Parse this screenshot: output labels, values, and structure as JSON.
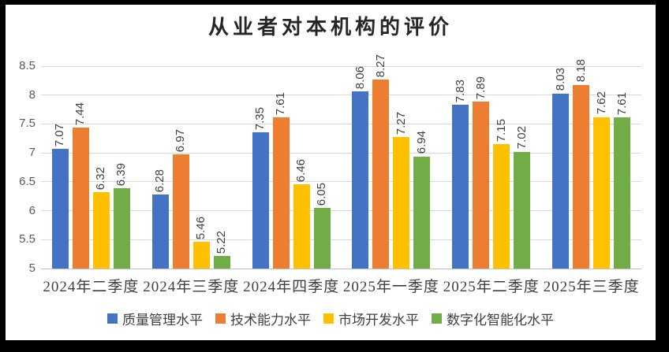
{
  "chart_data": {
    "type": "bar",
    "title": "从业者对本机构的评价",
    "categories": [
      "2024年二季度",
      "2024年三季度",
      "2024年四季度",
      "2025年一季度",
      "2025年二季度",
      "2025年三季度"
    ],
    "series": [
      {
        "name": "质量管理水平",
        "color": "#4472C4",
        "values": [
          7.07,
          6.28,
          7.35,
          8.06,
          7.83,
          8.03
        ]
      },
      {
        "name": "技术能力水平",
        "color": "#ED7D31",
        "values": [
          7.44,
          6.97,
          7.61,
          8.27,
          7.89,
          8.18
        ]
      },
      {
        "name": "市场开发水平",
        "color": "#FFC000",
        "values": [
          6.32,
          5.46,
          6.46,
          7.27,
          7.15,
          7.62
        ]
      },
      {
        "name": "数字化智能化水平",
        "color": "#70AD47",
        "values": [
          6.39,
          5.22,
          6.05,
          6.94,
          7.02,
          7.61
        ]
      }
    ],
    "ylim": [
      5,
      8.5
    ],
    "yticks": [
      "5",
      "5.5",
      "6",
      "6.5",
      "7",
      "7.5",
      "8",
      "8.5"
    ],
    "xlabel": "",
    "ylabel": "",
    "grid": true,
    "legend_position": "bottom",
    "data_labels": "rotated-vertical",
    "data_label_format": "0.00",
    "colors": {
      "gridline": "#d9d9d9",
      "axis": "#bfbfbf",
      "tick_text": "#595959",
      "category_text": "#404040",
      "title_text": "#262626",
      "frame": "#000000",
      "background": "#ffffff"
    }
  }
}
